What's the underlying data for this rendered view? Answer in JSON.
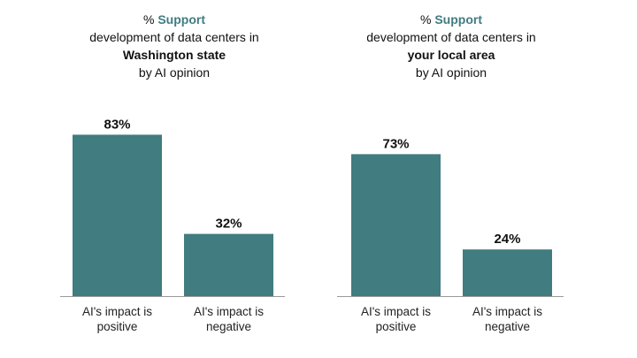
{
  "chart_data": [
    {
      "type": "bar",
      "title_prefix": "% ",
      "title_highlight": "Support",
      "title_line2": "development of data centers in",
      "title_line3": "Washington state",
      "title_line4": "by AI opinion",
      "categories": [
        "AI's impact is positive",
        "AI's impact is negative"
      ],
      "category_lines": [
        [
          "AI's impact is",
          "positive"
        ],
        [
          "AI's impact is",
          "negative"
        ]
      ],
      "values": [
        83,
        32
      ],
      "value_labels": [
        "83%",
        "32%"
      ],
      "ylim": [
        0,
        100
      ],
      "grid": false
    },
    {
      "type": "bar",
      "title_prefix": "% ",
      "title_highlight": "Support",
      "title_line2": "development of data centers in",
      "title_line3": "your local area",
      "title_line4": "by AI opinion",
      "categories": [
        "AI's impact is positive",
        "AI's impact is negative"
      ],
      "category_lines": [
        [
          "AI's impact is",
          "positive"
        ],
        [
          "AI's impact is",
          "negative"
        ]
      ],
      "values": [
        73,
        24
      ],
      "value_labels": [
        "73%",
        "24%"
      ],
      "ylim": [
        0,
        100
      ],
      "grid": false
    }
  ],
  "colors": {
    "bar": "#407c80",
    "highlight": "#407c80",
    "axis": "#9a9a9a"
  }
}
